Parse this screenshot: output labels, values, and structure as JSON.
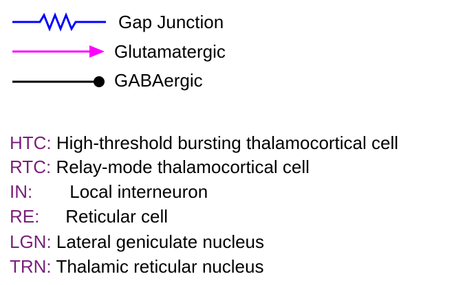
{
  "legend": [
    {
      "label": "Gap Junction",
      "symbol": "gap-junction-zigzag",
      "color": "#0000ff"
    },
    {
      "label": "Glutamatergic",
      "symbol": "arrow",
      "color": "#ff00ff"
    },
    {
      "label": "GABAergic",
      "symbol": "line-with-dot",
      "color": "#000000"
    }
  ],
  "abbreviations": [
    {
      "abbr": "HTC:",
      "definition": "High-threshold bursting thalamocortical cell"
    },
    {
      "abbr": "RTC:",
      "definition": "Relay-mode thalamocortical cell"
    },
    {
      "abbr": "IN:",
      "definition": "Local interneuron"
    },
    {
      "abbr": "RE:",
      "definition": "Reticular cell"
    },
    {
      "abbr": "LGN:",
      "definition": "Lateral geniculate nucleus"
    },
    {
      "abbr": "TRN:",
      "definition": "Thalamic reticular nucleus"
    }
  ],
  "colors": {
    "abbreviation": "#7a1f7a",
    "gap_junction": "#0000ff",
    "glutamatergic": "#ff00ff",
    "gabaergic": "#000000"
  }
}
